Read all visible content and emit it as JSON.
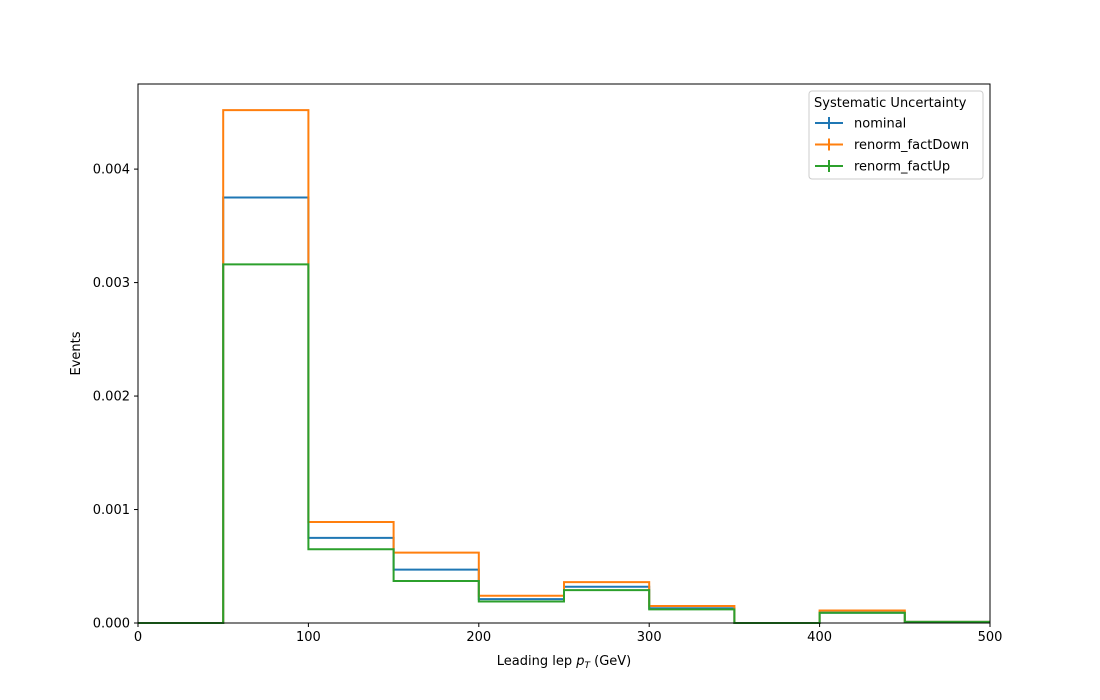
{
  "chart_data": {
    "type": "line",
    "drawstyle": "step histogram",
    "title": "",
    "xlabel": "Leading lep $p_T$ (GeV)",
    "xlabel_parts": {
      "prefix": "Leading lep ",
      "symbol": "p",
      "subscript": "T",
      "suffix": " (GeV)"
    },
    "ylabel": "Events",
    "xlim": [
      0,
      500
    ],
    "ylim": [
      0,
      0.00475
    ],
    "xticks": [
      "0",
      "100",
      "200",
      "300",
      "400",
      "500"
    ],
    "yticks": [
      "0.000",
      "0.001",
      "0.002",
      "0.003",
      "0.004"
    ],
    "grid": false,
    "bin_edges": [
      0,
      50,
      100,
      150,
      200,
      250,
      300,
      350,
      400,
      450,
      500
    ],
    "legend": {
      "title": "Systematic Uncertainty",
      "placement": "top-right"
    },
    "series": [
      {
        "name": "nominal",
        "color": "#1f77b4",
        "values": [
          0,
          0.00375,
          0.00075,
          0.00047,
          0.00021,
          0.00032,
          0.00013,
          0.0,
          9e-05,
          1e-05
        ]
      },
      {
        "name": "renorm_factDown",
        "color": "#ff7f0e",
        "values": [
          0,
          0.00452,
          0.00089,
          0.00062,
          0.00024,
          0.00036,
          0.00015,
          0.0,
          0.00011,
          1e-05
        ]
      },
      {
        "name": "renorm_factUp",
        "color": "#2ca02c",
        "values": [
          0,
          0.00316,
          0.00065,
          0.00037,
          0.00019,
          0.00029,
          0.00012,
          0.0,
          9e-05,
          1e-05
        ]
      }
    ]
  }
}
